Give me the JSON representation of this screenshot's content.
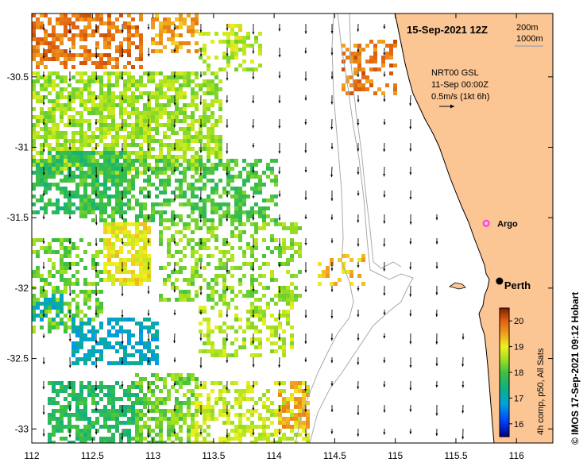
{
  "map": {
    "title": "15-Sep-2021 12Z",
    "depth_labels": [
      "200m",
      "1000m"
    ],
    "current_info": {
      "product": "NRT00 GSL",
      "date": "11-Sep 00:00Z",
      "scale": "0.5m/s (1kt 6h)"
    },
    "credit": "© IMOS 17-Sep-2021 09:12 Hobart",
    "x_axis": {
      "ticks": [
        "112",
        "112.5",
        "113",
        "113.5",
        "114",
        "114.5",
        "115",
        "115.5",
        "116"
      ],
      "range": [
        112,
        116.3
      ]
    },
    "y_axis": {
      "ticks": [
        "-30.5",
        "-31",
        "-31.5",
        "-32",
        "-32.5",
        "-33"
      ],
      "range": [
        -33.1,
        -30.05
      ]
    },
    "locations": [
      {
        "name": "Perth",
        "lon": 115.86,
        "lat": -31.95,
        "type": "city"
      },
      {
        "name": "Argo",
        "lon": 115.75,
        "lat": -31.54,
        "type": "float"
      }
    ],
    "colorbar": {
      "label": "4h comp, p50, All Sats",
      "ticks": [
        "16",
        "17",
        "18",
        "19",
        "20"
      ],
      "min": 15.5,
      "max": 20.5
    },
    "colors": {
      "land": "#fbc594",
      "coast": "#000000",
      "isobath": "#a9a9a9",
      "arrow": "#000000",
      "argo": "#ff33ff"
    }
  }
}
